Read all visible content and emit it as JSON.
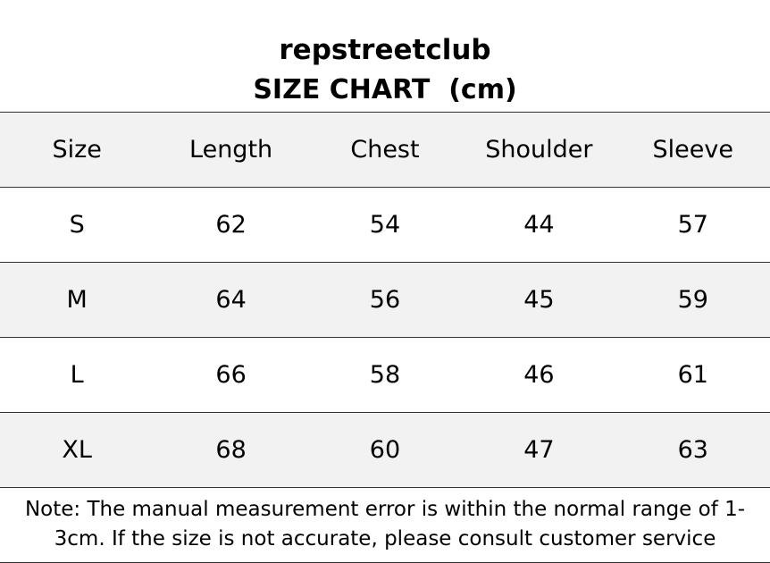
{
  "header": {
    "title": "repstreetclub",
    "subtitle": "SIZE CHART  (cm)"
  },
  "table": {
    "columns": [
      "Size",
      "Length",
      "Chest",
      "Shoulder",
      "Sleeve"
    ],
    "rows": [
      [
        "S",
        62,
        54,
        44,
        57
      ],
      [
        "M",
        64,
        56,
        45,
        59
      ],
      [
        "L",
        66,
        58,
        46,
        61
      ],
      [
        "XL",
        68,
        60,
        47,
        63
      ]
    ]
  },
  "note": "Note: The manual measurement error is within the normal range of 1-3cm. If the size is not accurate, please consult customer service"
}
